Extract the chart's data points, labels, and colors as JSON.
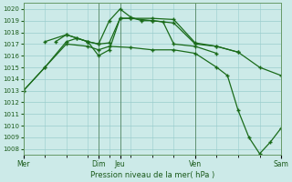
{
  "background_color": "#cceae8",
  "grid_color": "#99cccc",
  "line_color": "#1a6b1a",
  "marker": "+",
  "xlabel": "Pression niveau de la mer( hPa )",
  "ylim": [
    1007.5,
    1020.5
  ],
  "yticks": [
    1008,
    1009,
    1010,
    1011,
    1012,
    1013,
    1014,
    1015,
    1016,
    1017,
    1018,
    1019,
    1020
  ],
  "xlim": [
    0,
    12
  ],
  "xtick_positions": [
    0,
    3.5,
    4.5,
    8,
    12
  ],
  "xtick_labels": [
    "Mer",
    "Dim",
    "Jeu",
    "Ven",
    "Sam"
  ],
  "vline_positions": [
    0,
    3.5,
    4.5,
    8,
    12
  ],
  "series": [
    [
      [
        0,
        1013.0
      ],
      [
        1,
        1015.0
      ],
      [
        2,
        1017.2
      ],
      [
        2.5,
        1017.5
      ],
      [
        3,
        1017.2
      ],
      [
        3.5,
        1017.0
      ],
      [
        4,
        1017.1
      ],
      [
        4.5,
        1019.2
      ],
      [
        5,
        1019.2
      ],
      [
        6,
        1019.0
      ],
      [
        6.5,
        1018.9
      ],
      [
        7,
        1017.0
      ],
      [
        8,
        1016.8
      ],
      [
        9,
        1016.2
      ]
    ],
    [
      [
        1.5,
        1017.2
      ],
      [
        2,
        1017.8
      ],
      [
        2.5,
        1017.5
      ],
      [
        3,
        1017.2
      ],
      [
        3.5,
        1017.0
      ],
      [
        4,
        1019.0
      ],
      [
        4.5,
        1020.0
      ],
      [
        5,
        1019.3
      ],
      [
        5.5,
        1019.0
      ],
      [
        6,
        1019.0
      ],
      [
        7,
        1018.8
      ],
      [
        8,
        1017.0
      ],
      [
        9,
        1016.8
      ],
      [
        10,
        1016.3
      ]
    ],
    [
      [
        1,
        1017.2
      ],
      [
        2,
        1017.8
      ],
      [
        3,
        1017.2
      ],
      [
        3.5,
        1016.0
      ],
      [
        4,
        1016.5
      ],
      [
        4.5,
        1019.2
      ],
      [
        5,
        1019.2
      ],
      [
        6,
        1019.2
      ],
      [
        7,
        1019.1
      ],
      [
        8,
        1017.1
      ],
      [
        9,
        1016.8
      ],
      [
        10,
        1016.3
      ],
      [
        11,
        1015.0
      ],
      [
        12,
        1014.3
      ]
    ],
    [
      [
        0,
        1013.0
      ],
      [
        1,
        1015.0
      ],
      [
        2,
        1017.0
      ],
      [
        3,
        1016.8
      ],
      [
        3.5,
        1016.5
      ],
      [
        4,
        1016.8
      ],
      [
        5,
        1016.7
      ],
      [
        6,
        1016.5
      ],
      [
        7,
        1016.5
      ],
      [
        8,
        1016.2
      ],
      [
        9,
        1015.0
      ],
      [
        9.5,
        1014.3
      ],
      [
        10,
        1011.3
      ],
      [
        10.5,
        1009.0
      ],
      [
        11,
        1007.6
      ],
      [
        11.5,
        1008.6
      ],
      [
        12,
        1009.8
      ]
    ]
  ]
}
